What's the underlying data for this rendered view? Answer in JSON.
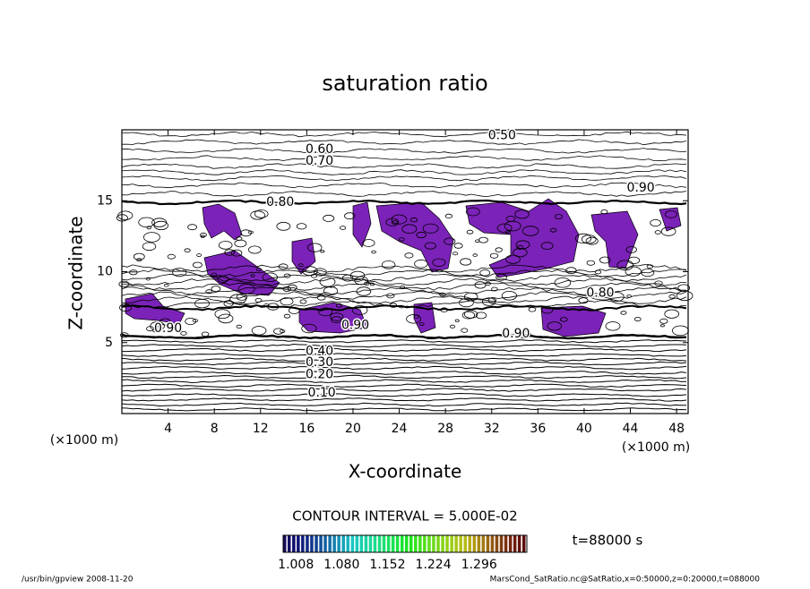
{
  "chart_data": {
    "type": "contour",
    "title": "saturation ratio",
    "xlabel": "X-coordinate",
    "ylabel": "Z-coordinate",
    "xunit": "(×1000 m)",
    "xlim": [
      0,
      49
    ],
    "ylim": [
      0,
      20
    ],
    "xticks": [
      4,
      8,
      12,
      16,
      20,
      24,
      28,
      32,
      36,
      40,
      44,
      48
    ],
    "yticks": [
      5,
      10,
      15
    ],
    "contour_interval_text": "CONTOUR INTERVAL = 5.000E-02",
    "time_text": "t=88000 s",
    "shade_color": "#7b22b8",
    "contours": [
      {
        "level": 0.5,
        "label": "0.50",
        "x": 32.9,
        "y": 19.6
      },
      {
        "level": 0.6,
        "label": "0.60",
        "x": 17.1,
        "y": 18.6
      },
      {
        "level": 0.7,
        "label": "0.70",
        "x": 17.1,
        "y": 17.8
      },
      {
        "level": 0.9,
        "label": "0.90",
        "x": 44.9,
        "y": 15.9
      },
      {
        "level": 0.8,
        "label": "0.80",
        "x": 13.7,
        "y": 14.9
      },
      {
        "level": 0.8,
        "label": "0.80",
        "x": 41.4,
        "y": 8.5
      },
      {
        "level": 0.9,
        "label": "0.90",
        "x": 4.0,
        "y": 6.0
      },
      {
        "level": 0.9,
        "label": "0.90",
        "x": 20.2,
        "y": 6.2
      },
      {
        "level": 0.9,
        "label": "0.90",
        "x": 34.1,
        "y": 5.6
      },
      {
        "level": 0.4,
        "label": "0.40",
        "x": 17.1,
        "y": 4.4
      },
      {
        "level": 0.3,
        "label": "0.30",
        "x": 17.1,
        "y": 3.6
      },
      {
        "level": 0.2,
        "label": "0.20",
        "x": 17.1,
        "y": 2.75
      },
      {
        "level": 0.1,
        "label": "0.10",
        "x": 17.3,
        "y": 1.45
      }
    ],
    "colorbar": {
      "clim": [
        0.988,
        1.371
      ],
      "ticks": [
        1.008,
        {
          "value": 1.08,
          "label": "1.080"
        },
        1.152,
        1.224,
        1.296
      ]
    },
    "footer_left": "/usr/bin/gpview   2008-11-20",
    "footer_right": "MarsCond_SatRatio.nc@SatRatio,x=0:50000,z=0:20000,t=088000"
  }
}
